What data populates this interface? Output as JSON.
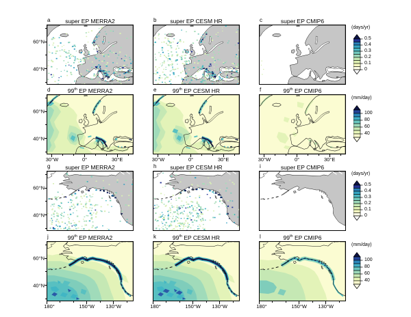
{
  "figure": {
    "background": "#ffffff"
  },
  "chart_data": {
    "type": "heatmap",
    "subtype": "geographic map grid: filled-contour precipitation maps and event-frequency speckle maps",
    "grid": {
      "rows": 4,
      "cols": 3
    },
    "panels": [
      {
        "letter": "a",
        "title_pre": "super EP MERRA2",
        "title_sup": "",
        "title_post": "",
        "dataset": "MERRA2",
        "metric": "super EP frequency",
        "region": "europe",
        "units": "days/yr",
        "style": "speckle",
        "density": 1,
        "level": "",
        "seed": 101,
        "summary": "Scattered super-EP occurrences (~0.05-0.3 days/yr) over the subtropical Atlantic, Mediterranean and southern Europe; dark cluster along the Alps and Norwegian coast; near zero in the north; land masked gray."
      },
      {
        "letter": "b",
        "title_pre": "super EP CESM HR",
        "title_sup": "",
        "title_post": "",
        "dataset": "CESM HR",
        "metric": "super EP frequency",
        "region": "europe",
        "units": "days/yr",
        "style": "speckle",
        "density": 1.35,
        "level": "",
        "seed": 202,
        "summary": "Similar speckled pattern to MERRA2 but denser, especially over the Atlantic and Mediterranean."
      },
      {
        "letter": "c",
        "title_pre": "super EP CMIP6",
        "title_sup": "",
        "title_post": "",
        "dataset": "CMIP6",
        "metric": "super EP frequency",
        "region": "europe",
        "units": "days/yr",
        "style": "speckle",
        "density": 0.02,
        "level": "",
        "seed": 303,
        "summary": "Almost no super-EP days anywhere; map essentially blank (white ocean, gray land)."
      },
      {
        "letter": "d",
        "title_pre": "99",
        "title_sup": "th",
        "title_post": " EP MERRA2",
        "dataset": "MERRA2",
        "metric": "99th percentile extreme precipitation",
        "region": "europe",
        "units": "mm/day",
        "style": "contour",
        "density": 0,
        "level": "high",
        "seed": 404,
        "summary": "99th-percentile precipitation 30-60 mm/day over the Atlantic and Mediterranean, dark 80-100+ mm/day streaks along the Alps, Adriatic and Norwegian coast; pale (<30) over land interiors and the Arctic."
      },
      {
        "letter": "e",
        "title_pre": "99",
        "title_sup": "th",
        "title_post": " EP CESM HR",
        "dataset": "CESM HR",
        "metric": "99th percentile extreme precipitation",
        "region": "europe",
        "units": "mm/day",
        "style": "contour",
        "density": 0,
        "level": "high",
        "seed": 505,
        "summary": "Pattern very close to MERRA2 with slightly stronger teal values west of Iberia."
      },
      {
        "letter": "f",
        "title_pre": "99",
        "title_sup": "th",
        "title_post": " EP CMIP6",
        "dataset": "CMIP6",
        "metric": "99th percentile extreme precipitation",
        "region": "europe",
        "units": "mm/day",
        "style": "contour",
        "density": 0,
        "level": "low",
        "seed": 606,
        "summary": "Mostly below 40 mm/day (pale yellow); weak green patches west of Iberia, west of Ireland, along the Norwegian coast and Mediterranean coasts."
      },
      {
        "letter": "g",
        "title_pre": "super EP MERRA2",
        "title_sup": "",
        "title_post": "",
        "dataset": "MERRA2",
        "metric": "super EP frequency",
        "region": "pacific",
        "units": "days/yr",
        "style": "speckle",
        "density": 1,
        "level": "",
        "seed": 707,
        "summary": "Speckled super-EP occurrences south of ~40N in the central/eastern Pacific; dark specks hug the Gulf of Alaska and British Columbia coastal mountains; blank in the Bering Sea."
      },
      {
        "letter": "h",
        "title_pre": "super EP CESM HR",
        "title_sup": "",
        "title_post": "",
        "dataset": "CESM HR",
        "metric": "super EP frequency",
        "region": "pacific",
        "units": "days/yr",
        "style": "speckle",
        "density": 1.4,
        "level": "",
        "seed": 808,
        "summary": "Denser speckle than MERRA2 over the subtropical Pacific; same dark coastal cluster."
      },
      {
        "letter": "i",
        "title_pre": "super EP CMIP6",
        "title_sup": "",
        "title_post": "",
        "dataset": "CMIP6",
        "metric": "super EP frequency",
        "region": "pacific",
        "units": "days/yr",
        "style": "speckle",
        "density": 0,
        "level": "",
        "seed": 909,
        "summary": "No super-EP days; blank white ocean with gray land."
      },
      {
        "letter": "j",
        "title_pre": "99",
        "title_sup": "th",
        "title_post": " EP MERRA2",
        "dataset": "MERRA2",
        "metric": "99th percentile extreme precipitation",
        "region": "pacific",
        "units": "mm/day",
        "style": "contour",
        "density": 0,
        "level": "high",
        "seed": 111,
        "summary": "Values increase from <40 mm/day in the Bering Sea to 60-80 mm/day in the subtropics with darker 80-100 blobs; a >100 mm/day navy ribbon runs along the Alaska to British Columbia coast."
      },
      {
        "letter": "k",
        "title_pre": "99",
        "title_sup": "th",
        "title_post": " EP CESM HR",
        "dataset": "CESM HR",
        "metric": "99th percentile extreme precipitation",
        "region": "pacific",
        "units": "mm/day",
        "style": "contour",
        "density": 0,
        "level": "high",
        "seed": 222,
        "summary": "Pattern very close to MERRA2, slightly more dark-blue area in the southern ocean."
      },
      {
        "letter": "l",
        "title_pre": "99",
        "title_sup": "th",
        "title_post": " EP CMIP6",
        "dataset": "CMIP6",
        "metric": "99th percentile extreme precipitation",
        "region": "pacific",
        "units": "mm/day",
        "style": "contour",
        "density": 0,
        "level": "low",
        "seed": 333,
        "summary": "Weaker gradient, mostly 30-60 mm/day, with a thin teal-navy coastal maximum."
      }
    ],
    "axes": {
      "europe": {
        "x_domain_deg": [
          -35,
          45
        ],
        "y_domain_deg": [
          28,
          73
        ],
        "x_major": [
          {
            "label": "30°W",
            "f": 0.0625
          },
          {
            "label": "0°",
            "f": 0.4375
          },
          {
            "label": "30°E",
            "f": 0.8125
          }
        ],
        "x_minor": [
          0.1875,
          0.3125,
          0.5625,
          0.6875,
          0.9375
        ],
        "y_major": [
          {
            "label": "60°N",
            "f": 0.289
          },
          {
            "label": "40°N",
            "f": 0.733
          }
        ],
        "y_minor": [
          0.067,
          0.511,
          0.956
        ]
      },
      "pacific": {
        "x_domain_deg": [
          180,
          -115
        ],
        "y_domain_deg": [
          28,
          73
        ],
        "x_major": [
          {
            "label": "180°",
            "f": 0.0
          },
          {
            "label": "150°W",
            "f": 0.4615
          },
          {
            "label": "130°W",
            "f": 0.7692
          }
        ],
        "x_minor": [
          0.1538,
          0.3077,
          0.6154,
          0.9231
        ],
        "y_major": [
          {
            "label": "60°N",
            "f": 0.289
          },
          {
            "label": "40°N",
            "f": 0.733
          }
        ],
        "y_minor": [
          0.067,
          0.511,
          0.956
        ]
      }
    },
    "colorbar_defs": {
      "days": {
        "unit": "(days/yr)",
        "tick_labels": [
          "0.5",
          "0.4",
          "0.3",
          "0.2",
          "0.1",
          "0"
        ],
        "tick_values": [
          0.5,
          0.4,
          0.3,
          0.2,
          0.1,
          0
        ],
        "value_step": 0.05,
        "segments_bottom_to_top": [
          "#ffffe6",
          "#f6fbc0",
          "#e2f3b4",
          "#c5e8b4",
          "#9cd9b9",
          "#72c9bd",
          "#4cb9c3",
          "#34a4c2",
          "#2a7fb7",
          "#253494"
        ],
        "arrow_top": "#0d1347",
        "arrow_bottom": "#ffffff",
        "label_boundaries": [
          0,
          2,
          4,
          6,
          8,
          10
        ],
        "seg_h": 4.5
      },
      "mm": {
        "unit": "(mm/day)",
        "tick_labels": [
          "100",
          "80",
          "60",
          "40"
        ],
        "tick_values": [
          100,
          80,
          60,
          40
        ],
        "value_step": 10,
        "segments_bottom_to_top": [
          "#fcfdcd",
          "#e8f6b8",
          "#c7e9b4",
          "#9bd9b9",
          "#6ac7bf",
          "#41afc6",
          "#2b87ba",
          "#254699"
        ],
        "arrow_top": "#0c1243",
        "arrow_bottom": "#ffffe8",
        "label_boundaries": [
          1,
          3,
          5,
          7
        ],
        "seg_h": 5
      }
    },
    "colorbars": [
      {
        "def": "days",
        "row": 0,
        "applies_to": "panels a,b,c"
      },
      {
        "def": "mm",
        "row": 1,
        "applies_to": "panels d,e,f"
      },
      {
        "def": "days",
        "row": 2,
        "applies_to": "panels g,h,i"
      },
      {
        "def": "mm",
        "row": 3,
        "applies_to": "panels j,k,l"
      }
    ],
    "colors": {
      "land": "#c6c6c6",
      "coastline": "#111111",
      "ocean_zero": "#ffffff",
      "base": "#fbfcd2",
      "lightGreen": "#e3f3b8",
      "green": "#c5e8b4",
      "medGreen": "#a0dbba",
      "tealGreen": "#7fcdbb",
      "teal": "#58c0c1",
      "deepTeal": "#41b6c4",
      "blue": "#2e8fbe",
      "navyBlue": "#2a5aa8",
      "darkNavy": "#18235f"
    }
  }
}
